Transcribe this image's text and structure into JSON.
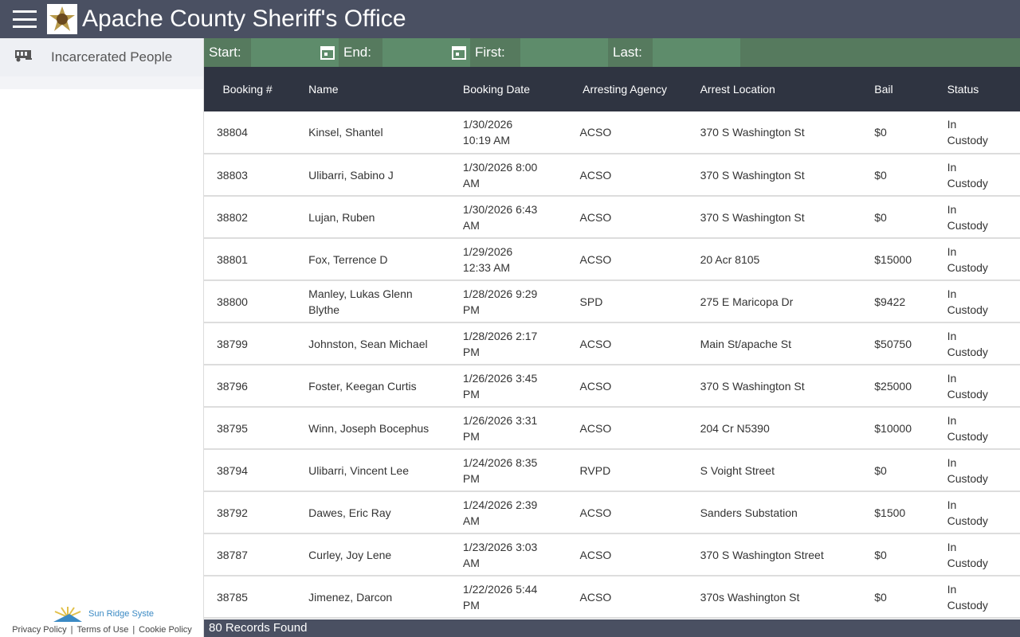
{
  "header": {
    "title": "Apache County Sheriff's Office"
  },
  "sidebar": {
    "items": [
      {
        "label": "Incarcerated People",
        "icon": "bus-icon"
      }
    ],
    "brand": "Sun Ridge Syste",
    "links": [
      "Privacy Policy",
      "Terms of Use",
      "Cookie Policy"
    ]
  },
  "filters": {
    "start": "Start:",
    "end": "End:",
    "first": "First:",
    "last": "Last:"
  },
  "table": {
    "headers": [
      "Booking #",
      "Name",
      "Booking Date",
      "Arresting Agency",
      "Arrest Location",
      "Bail",
      "Status"
    ],
    "rows": [
      [
        "38804",
        "Kinsel, Shantel",
        "1/30/2026 10:19 AM",
        "ACSO",
        "370 S Washington St",
        "$0",
        "In Custody"
      ],
      [
        "38803",
        "Ulibarri, Sabino J",
        "1/30/2026 8:00 AM",
        "ACSO",
        "370 S Washington St",
        "$0",
        "In Custody"
      ],
      [
        "38802",
        "Lujan, Ruben",
        "1/30/2026 6:43 AM",
        "ACSO",
        "370 S Washington St",
        "$0",
        "In Custody"
      ],
      [
        "38801",
        "Fox, Terrence D",
        "1/29/2026 12:33 AM",
        "ACSO",
        "20 Acr 8105",
        "$15000",
        "In Custody"
      ],
      [
        "38800",
        "Manley, Lukas Glenn Blythe",
        "1/28/2026 9:29 PM",
        "SPD",
        "275 E Maricopa Dr",
        "$9422",
        "In Custody"
      ],
      [
        "38799",
        "Johnston, Sean Michael",
        "1/28/2026 2:17 PM",
        "ACSO",
        "Main St/apache St",
        "$50750",
        "In Custody"
      ],
      [
        "38796",
        "Foster, Keegan Curtis",
        "1/26/2026 3:45 PM",
        "ACSO",
        "370 S Washington St",
        "$25000",
        "In Custody"
      ],
      [
        "38795",
        "Winn, Joseph Bocephus",
        "1/26/2026 3:31 PM",
        "ACSO",
        "204 Cr N5390",
        "$10000",
        "In Custody"
      ],
      [
        "38794",
        "Ulibarri, Vincent Lee",
        "1/24/2026 8:35 PM",
        "RVPD",
        "S Voight Street",
        "$0",
        "In Custody"
      ],
      [
        "38792",
        "Dawes, Eric Ray",
        "1/24/2026 2:39 AM",
        "ACSO",
        "Sanders Substation",
        "$1500",
        "In Custody"
      ],
      [
        "38787",
        "Curley, Joy Lene",
        "1/23/2026 3:03 AM",
        "ACSO",
        "370 S Washington Street",
        "$0",
        "In Custody"
      ],
      [
        "38785",
        "Jimenez, Darcon",
        "1/22/2026 5:44 PM",
        "ACSO",
        "370s Washington St",
        "$0",
        "In Custody"
      ]
    ]
  },
  "footer": {
    "records": "80 Records Found"
  }
}
